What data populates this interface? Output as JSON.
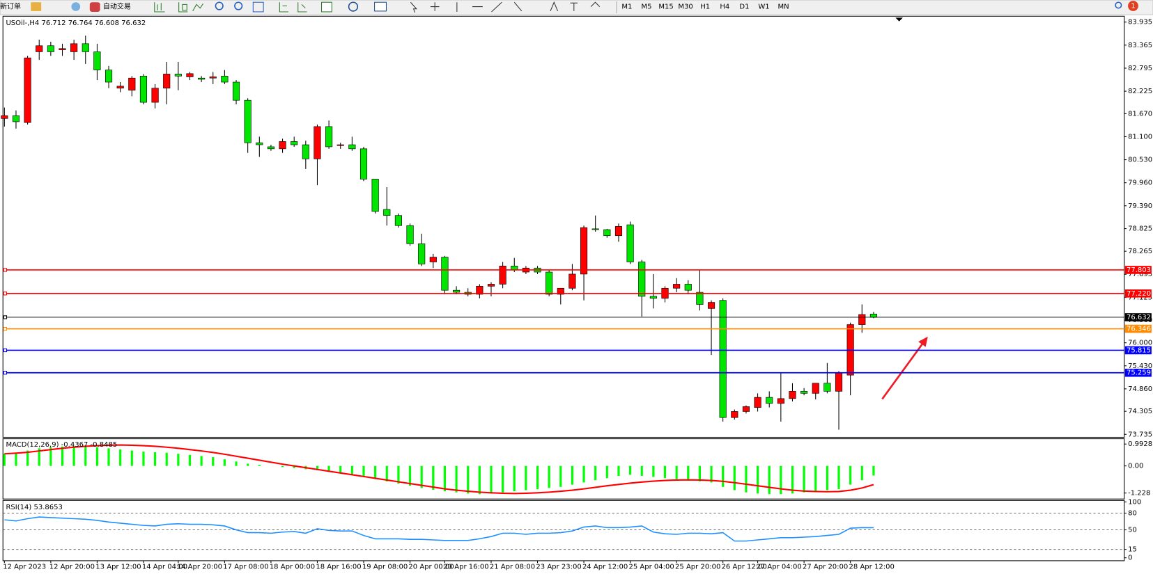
{
  "toolbar": {
    "new_order": "新订单",
    "auto_trading": "自动交易",
    "timeframes": [
      "M1",
      "M5",
      "M15",
      "M30",
      "H1",
      "H4",
      "D1",
      "W1",
      "MN"
    ],
    "notifications": "1"
  },
  "chart_data": [
    {
      "type": "candlestick",
      "title": "USOil-,H4 76.712 76.764 76.608 76.632",
      "categories": [
        "12 Apr 2023",
        null,
        null,
        null,
        "12 Apr 20:00",
        null,
        null,
        null,
        "13 Apr 12:00",
        null,
        null,
        null,
        "14 Apr 04:00",
        null,
        null,
        "14 Apr 20:00",
        null,
        null,
        null,
        "17 Apr 08:00",
        null,
        null,
        null,
        "18 Apr 00:00",
        null,
        null,
        null,
        "18 Apr 16:00",
        null,
        null,
        null,
        "19 Apr 08:00",
        null,
        null,
        null,
        "20 Apr 00:00",
        null,
        null,
        "20 Apr 16:00",
        null,
        null,
        null,
        "21 Apr 08:00",
        null,
        null,
        null,
        "23 Apr 23:00",
        null,
        null,
        null,
        "24 Apr 12:00",
        null,
        null,
        null,
        "25 Apr 04:00",
        null,
        null,
        null,
        "25 Apr 20:00",
        null,
        null,
        null,
        "26 Apr 12:00",
        null,
        null,
        "27 Apr 04:00",
        null,
        null,
        null,
        "27 Apr 20:00",
        null,
        null,
        null,
        "28 Apr 12:00",
        null,
        null
      ],
      "open": [
        81.55,
        81.62,
        81.45,
        83.2,
        83.35,
        83.25,
        83.2,
        83.4,
        83.2,
        82.75,
        82.3,
        82.25,
        82.6,
        81.95,
        82.3,
        82.65,
        82.58,
        82.55,
        82.55,
        82.6,
        82.45,
        82.0,
        80.95,
        80.85,
        80.8,
        80.98,
        80.9,
        80.55,
        81.35,
        80.88,
        80.9,
        80.8,
        80.05,
        79.3,
        79.15,
        78.9,
        78.45,
        78.0,
        78.12,
        77.3,
        77.25,
        77.2,
        77.4,
        77.45,
        77.9,
        77.75,
        77.85,
        77.75,
        77.2,
        77.35,
        77.7,
        78.82,
        78.8,
        78.65,
        78.92,
        78.0,
        77.15,
        77.1,
        77.35,
        77.45,
        77.25,
        76.85,
        77.05,
        74.15,
        74.3,
        74.4,
        74.65,
        74.5,
        74.62,
        74.8,
        74.75,
        75.0,
        74.8,
        75.2,
        76.45,
        76.712
      ],
      "high": [
        81.82,
        81.75,
        83.1,
        83.5,
        83.45,
        83.4,
        83.5,
        83.6,
        83.4,
        82.85,
        82.45,
        82.6,
        82.65,
        82.4,
        82.95,
        82.95,
        82.7,
        82.6,
        82.7,
        82.75,
        82.5,
        82.05,
        81.1,
        80.9,
        81.05,
        81.1,
        81.0,
        81.4,
        81.5,
        80.95,
        81.1,
        80.85,
        80.05,
        79.85,
        79.2,
        78.95,
        78.7,
        78.2,
        78.15,
        77.4,
        77.35,
        77.45,
        77.5,
        78.0,
        78.1,
        77.9,
        77.9,
        77.8,
        77.35,
        77.95,
        78.9,
        79.15,
        78.82,
        78.95,
        79.0,
        78.05,
        77.7,
        77.4,
        77.6,
        77.55,
        77.8,
        77.05,
        77.1,
        74.35,
        74.45,
        74.75,
        74.8,
        75.25,
        75.0,
        74.88,
        75.0,
        75.5,
        75.3,
        76.5,
        76.95,
        76.764
      ],
      "low": [
        81.35,
        81.3,
        81.4,
        83.0,
        83.1,
        83.1,
        83.0,
        82.9,
        82.5,
        82.3,
        82.2,
        82.1,
        81.9,
        81.8,
        81.9,
        82.25,
        82.5,
        82.45,
        82.4,
        82.4,
        81.9,
        80.7,
        80.6,
        80.75,
        80.7,
        80.85,
        80.3,
        79.9,
        80.8,
        80.8,
        80.75,
        80.0,
        79.2,
        78.9,
        78.85,
        78.4,
        77.9,
        77.85,
        77.2,
        77.2,
        77.15,
        77.1,
        77.15,
        77.35,
        77.75,
        77.7,
        77.7,
        77.15,
        76.95,
        77.3,
        77.05,
        78.75,
        78.6,
        78.5,
        77.95,
        76.65,
        76.85,
        77.0,
        77.25,
        77.2,
        76.8,
        75.7,
        74.05,
        74.1,
        74.25,
        74.3,
        74.4,
        74.05,
        74.55,
        74.7,
        74.6,
        74.75,
        73.85,
        74.7,
        76.25,
        76.608
      ],
      "close": [
        81.62,
        81.47,
        83.05,
        83.35,
        83.2,
        83.28,
        83.4,
        83.2,
        82.75,
        82.45,
        82.35,
        82.55,
        81.95,
        82.3,
        82.65,
        82.6,
        82.66,
        82.52,
        82.58,
        82.45,
        82.0,
        80.95,
        80.9,
        80.8,
        80.98,
        80.9,
        80.55,
        81.35,
        80.85,
        80.9,
        80.8,
        80.05,
        79.25,
        79.15,
        78.9,
        78.45,
        77.95,
        78.12,
        77.3,
        77.25,
        77.2,
        77.4,
        77.45,
        77.9,
        77.8,
        77.85,
        77.75,
        77.2,
        77.35,
        77.7,
        78.85,
        78.8,
        78.65,
        78.88,
        78.0,
        77.15,
        77.1,
        77.35,
        77.45,
        77.3,
        76.95,
        77.0,
        74.15,
        74.3,
        74.42,
        74.65,
        74.5,
        74.62,
        74.8,
        74.75,
        75.0,
        74.8,
        75.25,
        76.45,
        76.7,
        76.632
      ],
      "up_color": "#ff0000",
      "down_color": "#00e600",
      "ylim": [
        73.735,
        83.935
      ],
      "yticks": [
        83.935,
        83.365,
        82.795,
        82.225,
        {
          "value": 81.67,
          "label": "81.670"
        },
        {
          "value": 81.1,
          "label": "81.100"
        },
        {
          "value": 80.53,
          "label": "80.530"
        },
        {
          "value": 79.96,
          "label": "79.960"
        },
        {
          "value": 79.39,
          "label": "79.390"
        },
        78.825,
        78.265,
        77.695,
        77.125,
        {
          "value": 76.56,
          "label": "76.560"
        },
        {
          "value": 76,
          "label": "76.000"
        },
        {
          "value": 75.43,
          "label": "75.430"
        },
        {
          "value": 74.86,
          "label": "74.860"
        },
        74.305,
        73.735
      ],
      "levels": [
        {
          "value": 77.803,
          "color": "#ff0000"
        },
        {
          "value": 77.22,
          "label": "77.220",
          "color": "#ff0000"
        },
        {
          "value": 76.632,
          "color": "#000000"
        },
        {
          "value": 76.346,
          "color": "#ff8c00"
        },
        {
          "value": 75.815,
          "color": "#0000ff"
        },
        {
          "value": 75.259,
          "color": "#0000ff"
        }
      ]
    },
    {
      "type": "macd",
      "title": "MACD(12,26,9) -0.4367 -0.8485",
      "values": [
        0.55,
        0.6,
        0.7,
        0.8,
        0.85,
        0.88,
        0.9,
        0.88,
        0.85,
        0.8,
        0.75,
        0.7,
        0.65,
        0.62,
        0.6,
        0.55,
        0.5,
        0.45,
        0.4,
        0.3,
        0.2,
        0.1,
        0.05,
        0.0,
        -0.05,
        -0.1,
        -0.15,
        -0.2,
        -0.25,
        -0.3,
        -0.4,
        -0.5,
        -0.6,
        -0.7,
        -0.8,
        -0.9,
        -1.0,
        -1.08,
        -1.15,
        -1.2,
        -1.25,
        -1.28,
        -1.25,
        -1.2,
        -1.15,
        -1.1,
        -1.05,
        -1.0,
        -0.95,
        -0.85,
        -0.75,
        -0.65,
        -0.55,
        -0.45,
        -0.4,
        -0.45,
        -0.5,
        -0.55,
        -0.6,
        -0.65,
        -0.7,
        -0.75,
        -0.95,
        -1.1,
        -1.2,
        -1.25,
        -1.28,
        -1.28,
        -1.25,
        -1.2,
        -1.15,
        -1.1,
        -1.05,
        -0.85,
        -0.65,
        -0.4367
      ],
      "signal": [
        0.55,
        0.58,
        0.62,
        0.68,
        0.74,
        0.8,
        0.85,
        0.89,
        0.92,
        0.94,
        0.95,
        0.94,
        0.92,
        0.89,
        0.85,
        0.8,
        0.74,
        0.68,
        0.61,
        0.53,
        0.44,
        0.35,
        0.26,
        0.17,
        0.08,
        0.0,
        -0.08,
        -0.16,
        -0.24,
        -0.32,
        -0.4,
        -0.48,
        -0.56,
        -0.64,
        -0.72,
        -0.8,
        -0.88,
        -0.96,
        -1.04,
        -1.1,
        -1.15,
        -1.19,
        -1.22,
        -1.24,
        -1.25,
        -1.24,
        -1.22,
        -1.19,
        -1.15,
        -1.1,
        -1.04,
        -0.97,
        -0.9,
        -0.84,
        -0.78,
        -0.73,
        -0.69,
        -0.66,
        -0.64,
        -0.63,
        -0.64,
        -0.66,
        -0.7,
        -0.76,
        -0.83,
        -0.9,
        -0.97,
        -1.04,
        -1.1,
        -1.14,
        -1.16,
        -1.17,
        -1.16,
        -1.1,
        -1.0,
        -0.8485
      ],
      "color": "#00ff00",
      "signal_color": "#ff0000",
      "ylim": [
        -1.5,
        1.2
      ],
      "yticks": [
        0.9928,
        {
          "value": 0,
          "label": "0.00"
        },
        -1.228
      ]
    },
    {
      "type": "rsi",
      "title": "RSI(14) 53.8653",
      "values": [
        68,
        66,
        70,
        73,
        72,
        71,
        70,
        69,
        67,
        64,
        62,
        60,
        58,
        57,
        60,
        61,
        60,
        60,
        59,
        57,
        50,
        45,
        45,
        44,
        46,
        47,
        44,
        52,
        49,
        48,
        48,
        40,
        34,
        34,
        34,
        33,
        33,
        32,
        31,
        31,
        31,
        34,
        38,
        44,
        44,
        42,
        44,
        44,
        45,
        48,
        55,
        57,
        54,
        54,
        55,
        57,
        46,
        43,
        42,
        44,
        44,
        43,
        45,
        30,
        30,
        32,
        34,
        36,
        36,
        37,
        38,
        40,
        42,
        53,
        54,
        53.8653
      ],
      "color": "#1e90ff",
      "ylim": [
        0,
        100
      ],
      "yticks": [
        100,
        80,
        50,
        15,
        0
      ],
      "levels": [
        80,
        50,
        15
      ]
    }
  ]
}
